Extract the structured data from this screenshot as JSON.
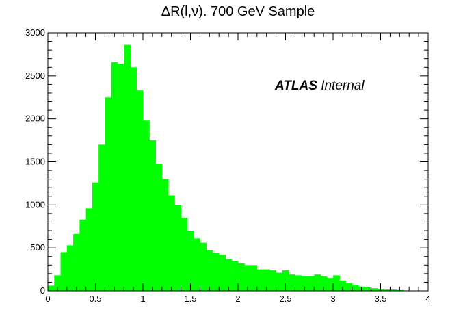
{
  "chart_data": {
    "type": "bar",
    "title": "ΔR(l,ν). 700 GeV Sample",
    "xlabel": "",
    "ylabel": "",
    "xlim": [
      0,
      4
    ],
    "ylim": [
      0,
      3000
    ],
    "bin_width": 0.0667,
    "x_ticks": [
      "0",
      "0.5",
      "1",
      "1.5",
      "2",
      "2.5",
      "3",
      "3.5",
      "4"
    ],
    "y_ticks": [
      "0",
      "500",
      "1000",
      "1500",
      "2000",
      "2500",
      "3000"
    ],
    "bar_color": "#00ff00",
    "grid": false,
    "annotation": {
      "bold": "ATLAS",
      "rest": " Internal"
    },
    "values": [
      60,
      180,
      450,
      530,
      660,
      830,
      960,
      1260,
      1700,
      2250,
      2660,
      2640,
      2860,
      2600,
      2330,
      1980,
      1750,
      1480,
      1300,
      1110,
      1000,
      850,
      700,
      610,
      560,
      470,
      440,
      420,
      370,
      350,
      320,
      300,
      300,
      250,
      250,
      240,
      210,
      240,
      190,
      180,
      170,
      170,
      190,
      170,
      150,
      180,
      120,
      90,
      70,
      50,
      40,
      30,
      20,
      15,
      15,
      10,
      5,
      3,
      0,
      0
    ]
  }
}
